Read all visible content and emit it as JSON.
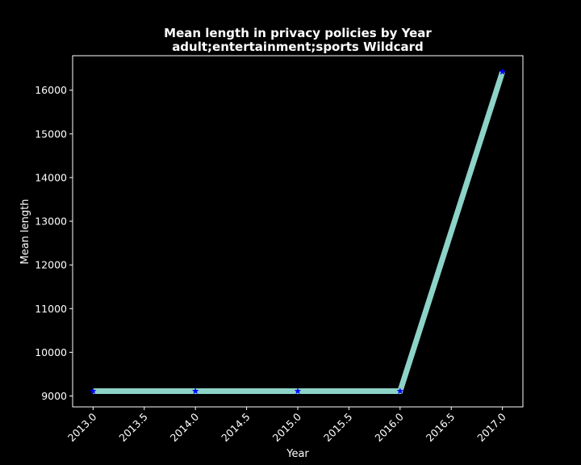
{
  "chart_data": {
    "type": "line",
    "title": "Mean length in privacy policies by Year",
    "subtitle": "adult;entertainment;sports Wildcard",
    "xlabel": "Year",
    "ylabel": "Mean length",
    "x": [
      2013.0,
      2014.0,
      2015.0,
      2016.0,
      2017.0
    ],
    "series": [
      {
        "values": [
          9110,
          9110,
          9110,
          9110,
          16420
        ]
      }
    ],
    "xlim": [
      2012.8,
      2017.2
    ],
    "ylim": [
      8750,
      16790
    ],
    "x_ticks": [
      "2013.0",
      "2013.5",
      "2014.0",
      "2014.5",
      "2015.0",
      "2015.5",
      "2016.0",
      "2016.5",
      "2017.0"
    ],
    "y_ticks": [
      "9000",
      "10000",
      "11000",
      "12000",
      "13000",
      "14000",
      "15000",
      "16000"
    ],
    "grid": false,
    "legend": "none",
    "colors": {
      "background": "#000000",
      "line": "#8dd3c7",
      "marker": "#0000ff",
      "text": "#ffffff",
      "axes": "#ffffff"
    }
  }
}
